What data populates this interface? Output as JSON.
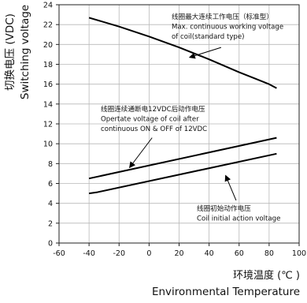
{
  "chart_data": {
    "type": "line",
    "title": "",
    "x_label_cn": "环境温度 (℃ )",
    "x_label_en": "Environmental Temperature",
    "y_label_cn": "切换电压 (VDC)",
    "y_label_en": "Switching voltage",
    "xlim": [
      -60,
      100
    ],
    "ylim": [
      0,
      24
    ],
    "x_ticks": [
      -60,
      -40,
      -20,
      0,
      20,
      40,
      60,
      80,
      100
    ],
    "y_ticks": [
      0,
      2,
      4,
      6,
      8,
      10,
      12,
      14,
      16,
      18,
      20,
      22,
      24
    ],
    "grid": true,
    "legend": "none",
    "series": [
      {
        "x": [
          -40,
          -20,
          0,
          20,
          40,
          60,
          70,
          80,
          85
        ],
        "y": [
          22.7,
          21.8,
          20.8,
          19.7,
          18.5,
          17.2,
          16.6,
          16.0,
          15.6
        ]
      },
      {
        "x": [
          -40,
          85
        ],
        "y": [
          6.5,
          10.6
        ]
      },
      {
        "x": [
          -40,
          -35,
          85
        ],
        "y": [
          5.0,
          5.1,
          9.0
        ]
      }
    ],
    "annotations": [
      {
        "lines": [
          "线圈最大连续工作电压（标准型）",
          "Max. continuous working voltage",
          "of coil(standard type)"
        ],
        "arrow_from": [
          48,
          19.7
        ],
        "arrow_to": [
          27,
          18.7
        ]
      },
      {
        "lines": [
          "线圈连续通断电12VDC后动作电压",
          "Opertate voltage of coil after",
          "continuous ON & OFF of 12VDC"
        ],
        "arrow_from": [
          2,
          10.6
        ],
        "arrow_to": [
          -13,
          7.6
        ]
      },
      {
        "lines": [
          "线圈初始动作电压",
          "Coil initial action voltage"
        ],
        "arrow_from": [
          58,
          4.3
        ],
        "arrow_to": [
          51,
          6.8
        ]
      }
    ]
  }
}
